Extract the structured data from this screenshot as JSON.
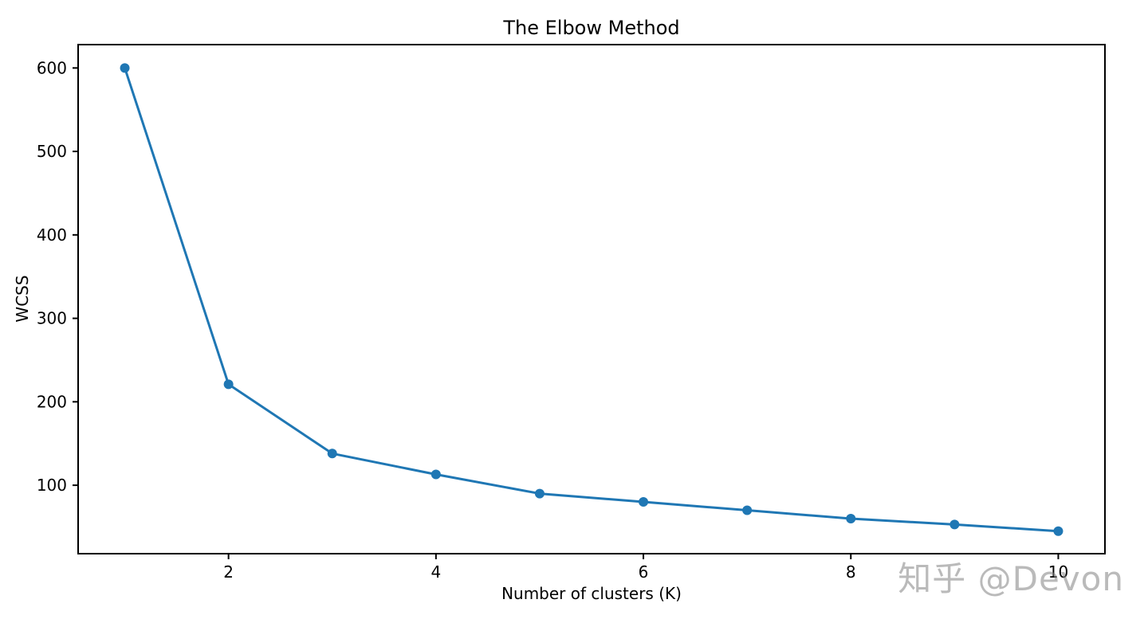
{
  "figure": {
    "background": "#ffffff"
  },
  "chart_data": {
    "type": "line",
    "title": "The Elbow Method",
    "xlabel": "Number of clusters (K)",
    "ylabel": "WCSS",
    "x": [
      1,
      2,
      3,
      4,
      5,
      6,
      7,
      8,
      9,
      10
    ],
    "series": [
      {
        "name": "WCSS",
        "values": [
          600,
          221,
          138,
          113,
          90,
          80,
          70,
          60,
          53,
          45
        ]
      }
    ],
    "x_ticks": [
      2,
      4,
      6,
      8,
      10
    ],
    "y_ticks": [
      100,
      200,
      300,
      400,
      500,
      600
    ],
    "xlim": [
      0.55,
      10.45
    ],
    "ylim": [
      18,
      628
    ],
    "grid": false,
    "legend_position": "none",
    "line_color": "#1f77b4",
    "marker": "circle",
    "marker_color": "#1f77b4",
    "axis_color": "#000000",
    "text_color": "#000000"
  },
  "watermark": {
    "text": "知乎 @Devon",
    "color": "#b5b5b5"
  }
}
